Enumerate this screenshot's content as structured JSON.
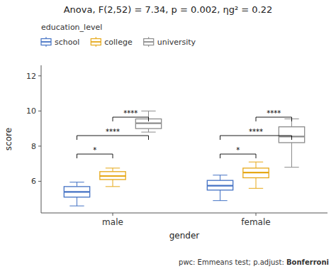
{
  "chart_data": {
    "type": "box",
    "title": "Anova, F(2,52) = 7.34, p = 0.002, ηg² = 0.22",
    "xlabel": "gender",
    "ylabel": "score",
    "footer_text": "pwc: Emmeans test; p.adjust: ",
    "footer_bold": "Bonferroni",
    "legend_title": "education_level",
    "legend": "top",
    "grid": false,
    "categories": [
      "male",
      "female"
    ],
    "series": [
      {
        "name": "school",
        "color": "#4472C4",
        "values": [
          {
            "q1": 5.1,
            "med": 5.4,
            "q3": 5.7,
            "whislo": 4.6,
            "whishi": 5.95
          },
          {
            "q1": 5.5,
            "med": 5.75,
            "q3": 6.05,
            "whislo": 4.9,
            "whishi": 6.35
          }
        ]
      },
      {
        "name": "college",
        "color": "#E6A817",
        "values": [
          {
            "q1": 6.1,
            "med": 6.3,
            "q3": 6.55,
            "whislo": 5.7,
            "whishi": 6.75
          },
          {
            "q1": 6.2,
            "med": 6.5,
            "q3": 6.75,
            "whislo": 5.6,
            "whishi": 7.1
          }
        ]
      },
      {
        "name": "university",
        "color": "#8C8C8C",
        "values": [
          {
            "q1": 9.0,
            "med": 9.3,
            "q3": 9.55,
            "whislo": 8.8,
            "whishi": 10.0
          },
          {
            "q1": 8.2,
            "med": 8.55,
            "q3": 9.1,
            "whislo": 6.8,
            "whishi": 9.55
          }
        ]
      }
    ],
    "annotations": [
      {
        "category": "male",
        "from": "school",
        "to": "college",
        "y": 7.55,
        "text": "*"
      },
      {
        "category": "male",
        "from": "school",
        "to": "university",
        "y": 8.6,
        "text": "****"
      },
      {
        "category": "male",
        "from": "college",
        "to": "university",
        "y": 9.65,
        "text": "****"
      },
      {
        "category": "female",
        "from": "school",
        "to": "college",
        "y": 7.55,
        "text": "*"
      },
      {
        "category": "female",
        "from": "school",
        "to": "university",
        "y": 8.6,
        "text": "****"
      },
      {
        "category": "female",
        "from": "college",
        "to": "university",
        "y": 9.65,
        "text": "****"
      }
    ],
    "ylim": [
      4.2,
      12.6
    ],
    "yticks": [
      6,
      8,
      10,
      12
    ]
  }
}
